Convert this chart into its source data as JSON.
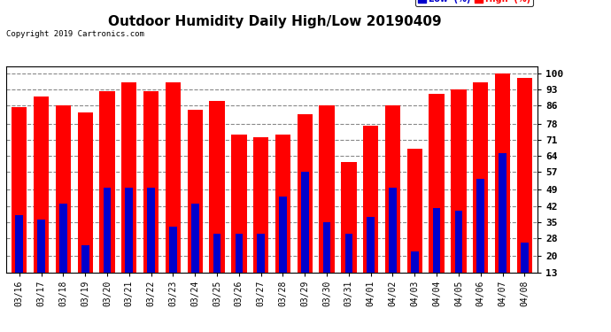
{
  "title": "Outdoor Humidity Daily High/Low 20190409",
  "copyright": "Copyright 2019 Cartronics.com",
  "categories": [
    "03/16",
    "03/17",
    "03/18",
    "03/19",
    "03/20",
    "03/21",
    "03/22",
    "03/23",
    "03/24",
    "03/25",
    "03/26",
    "03/27",
    "03/28",
    "03/29",
    "03/30",
    "03/31",
    "04/01",
    "04/02",
    "04/03",
    "04/04",
    "04/05",
    "04/06",
    "04/07",
    "04/08"
  ],
  "high_values": [
    85,
    90,
    86,
    83,
    92,
    96,
    92,
    96,
    84,
    88,
    73,
    72,
    73,
    82,
    86,
    61,
    77,
    86,
    67,
    91,
    93,
    96,
    100,
    98
  ],
  "low_values": [
    38,
    36,
    43,
    25,
    50,
    50,
    50,
    33,
    43,
    30,
    30,
    30,
    46,
    57,
    35,
    30,
    37,
    50,
    22,
    41,
    40,
    54,
    65,
    26
  ],
  "high_color": "#ff0000",
  "low_color": "#0000cc",
  "background_color": "#ffffff",
  "grid_color": "#888888",
  "yticks": [
    13,
    20,
    28,
    35,
    42,
    49,
    57,
    64,
    71,
    78,
    86,
    93,
    100
  ],
  "ymin": 13,
  "ymax": 103,
  "title_fontsize": 11,
  "tick_fontsize": 7,
  "legend_low_label": "Low  (%)",
  "legend_high_label": "High  (%)"
}
